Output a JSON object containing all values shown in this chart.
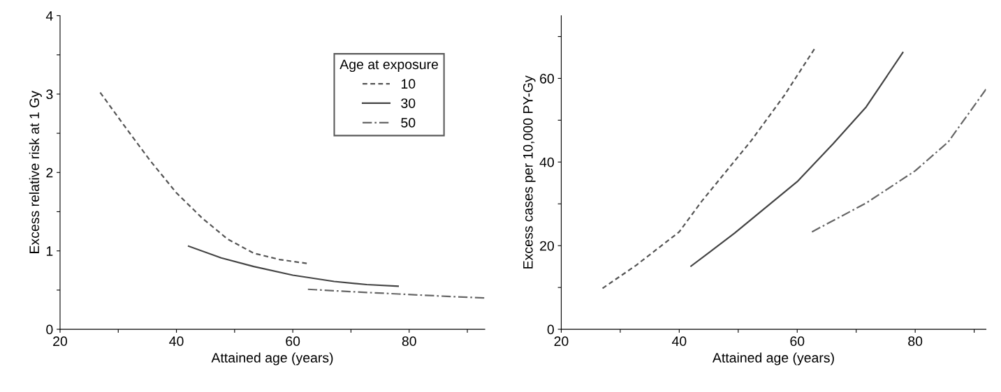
{
  "chart_data": [
    {
      "type": "line",
      "xlabel": "Attained age (years)",
      "ylabel": "Excess relative risk at 1 Gy",
      "legend_title": "Age at exposure",
      "legend": "top right",
      "grid": false,
      "xlim": [
        20,
        93
      ],
      "xticks": [
        20,
        {
          "value": 30,
          "label": null
        },
        40,
        {
          "value": 50,
          "label": null
        },
        60,
        {
          "value": 70,
          "label": null
        },
        80,
        {
          "value": 90,
          "label": null
        }
      ],
      "ylim": [
        0,
        4
      ],
      "yticks": [
        0,
        {
          "value": 0.5,
          "label": null
        },
        1,
        {
          "value": 1.5,
          "label": null
        },
        2,
        {
          "value": 2.5,
          "label": null
        },
        3,
        {
          "value": 3.5,
          "label": null
        },
        4
      ],
      "series": [
        {
          "name": "10",
          "color": "#555555",
          "line_style": "dashed",
          "x": [
            26.9,
            31.1,
            35.5,
            40,
            44.4,
            48.8,
            53.3,
            57.7,
            62.4
          ],
          "values": [
            3.02,
            2.59,
            2.15,
            1.74,
            1.42,
            1.15,
            0.97,
            0.89,
            0.84
          ]
        },
        {
          "name": "30",
          "color": "#444444",
          "line_style": "solid",
          "x": [
            42.1,
            47.7,
            53.3,
            60,
            67.1,
            72.7,
            78.1
          ],
          "values": [
            1.06,
            0.91,
            0.8,
            0.69,
            0.61,
            0.57,
            0.55
          ]
        },
        {
          "name": "50",
          "color": "#666666",
          "line_style": "dashdot",
          "x": [
            62.6,
            69.9,
            78.2,
            86.5,
            92.9
          ],
          "values": [
            0.51,
            0.48,
            0.45,
            0.42,
            0.4
          ]
        }
      ]
    },
    {
      "type": "line",
      "xlabel": "Attained age (years)",
      "ylabel": "Excess cases per 10,000 PY-Gy",
      "legend": false,
      "grid": false,
      "xlim": [
        20,
        92
      ],
      "xticks": [
        20,
        {
          "value": 30,
          "label": null
        },
        40,
        {
          "value": 50,
          "label": null
        },
        60,
        {
          "value": 70,
          "label": null
        },
        80,
        {
          "value": 90,
          "label": null
        }
      ],
      "ylim": [
        0,
        75
      ],
      "yticks": [
        0,
        {
          "value": 10,
          "label": null
        },
        20,
        {
          "value": 30,
          "label": null
        },
        40,
        {
          "value": 50,
          "label": null
        },
        60,
        {
          "value": 70,
          "label": null
        }
      ],
      "series": [
        {
          "color": "#555555",
          "line_style": "dashed",
          "x": [
            27.0,
            32.7,
            40,
            43.8,
            52.2,
            57.8,
            62.9
          ],
          "values": [
            9.8,
            15.3,
            23.3,
            30.6,
            45.1,
            55.9,
            67.0
          ]
        },
        {
          "color": "#444444",
          "line_style": "solid",
          "x": [
            42.0,
            49.4,
            60,
            66.1,
            71.7,
            77.9
          ],
          "values": [
            15.1,
            23.0,
            35.3,
            44.4,
            53.2,
            66.2
          ]
        },
        {
          "color": "#666666",
          "line_style": "dashdot",
          "x": [
            62.5,
            71.7,
            80,
            85.6,
            92.0
          ],
          "values": [
            23.3,
            30.2,
            37.9,
            44.8,
            57.4
          ]
        }
      ]
    }
  ]
}
